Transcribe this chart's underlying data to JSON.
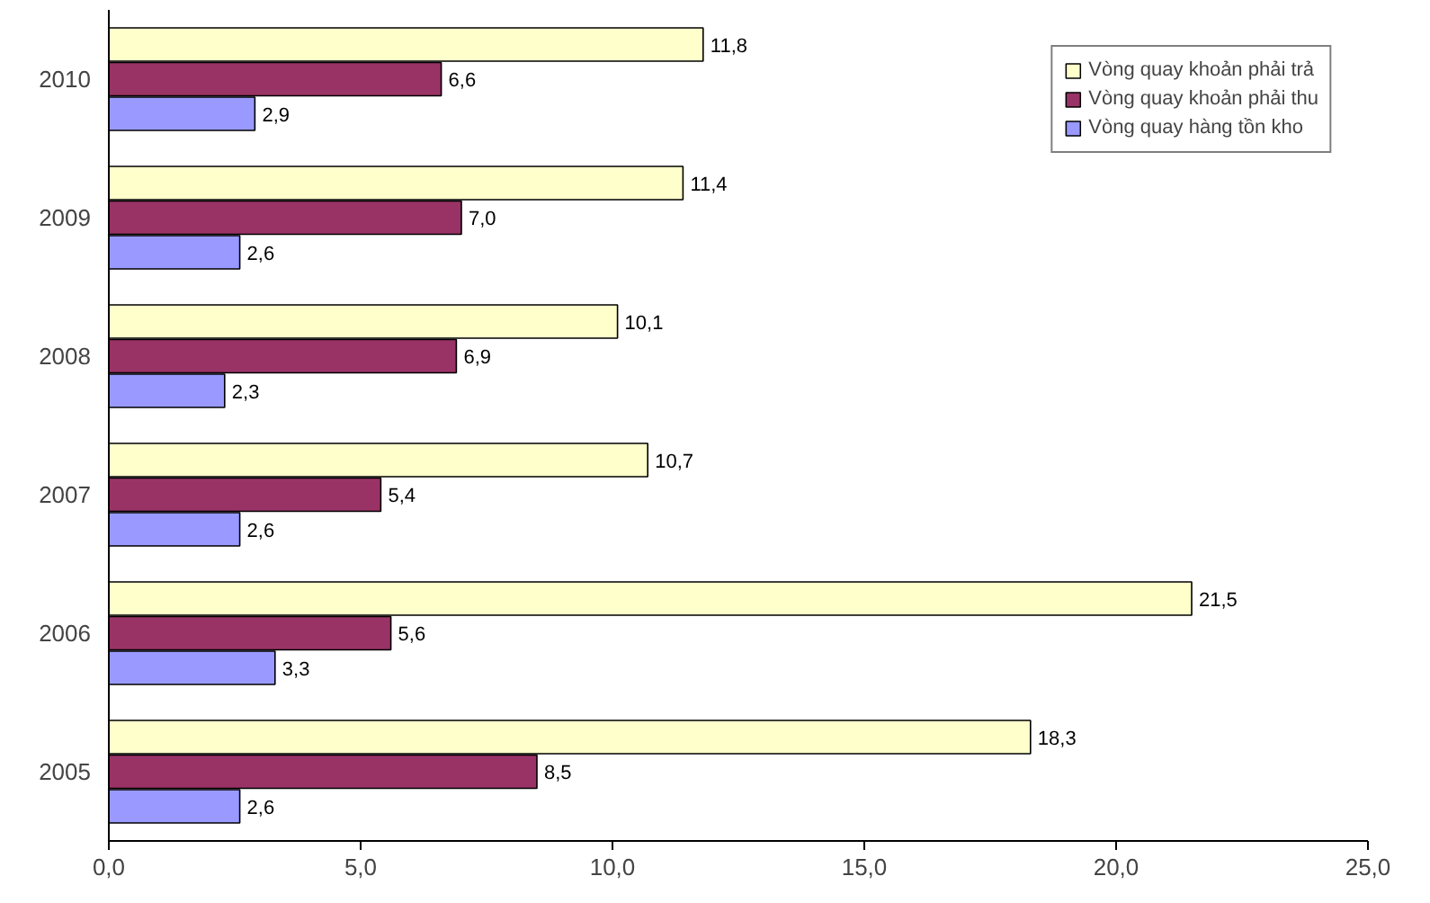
{
  "chart_data": {
    "type": "bar",
    "orientation": "horizontal",
    "categories": [
      "2010",
      "2009",
      "2008",
      "2007",
      "2006",
      "2005"
    ],
    "series": [
      {
        "name": "Vòng quay khoản phải trả",
        "color": "#ffffcc",
        "values": [
          11.8,
          11.4,
          10.1,
          10.7,
          21.5,
          18.3
        ],
        "value_labels": [
          "11,8",
          "11,4",
          "10,1",
          "10,7",
          "21,5",
          "18,3"
        ]
      },
      {
        "name": "Vòng quay khoản phải thu",
        "color": "#993366",
        "values": [
          6.6,
          7.0,
          6.9,
          5.4,
          5.6,
          8.5
        ],
        "value_labels": [
          "6,6",
          "7,0",
          "6,9",
          "5,4",
          "5,6",
          "8,5"
        ]
      },
      {
        "name": "Vòng quay hàng tồn kho",
        "color": "#9999ff",
        "values": [
          2.9,
          2.6,
          2.3,
          2.6,
          3.3,
          2.6
        ],
        "value_labels": [
          "2,9",
          "2,6",
          "2,3",
          "2,6",
          "3,3",
          "2,6"
        ]
      }
    ],
    "xlim": [
      0,
      25
    ],
    "xticks": [
      {
        "value": 0,
        "label": "0,0"
      },
      {
        "value": 5,
        "label": "5,0"
      },
      {
        "value": 10,
        "label": "10,0"
      },
      {
        "value": 15,
        "label": "15,0"
      },
      {
        "value": 20,
        "label": "20,0"
      },
      {
        "value": 25,
        "label": "25,0"
      }
    ],
    "legend": "top right",
    "grid": false
  }
}
